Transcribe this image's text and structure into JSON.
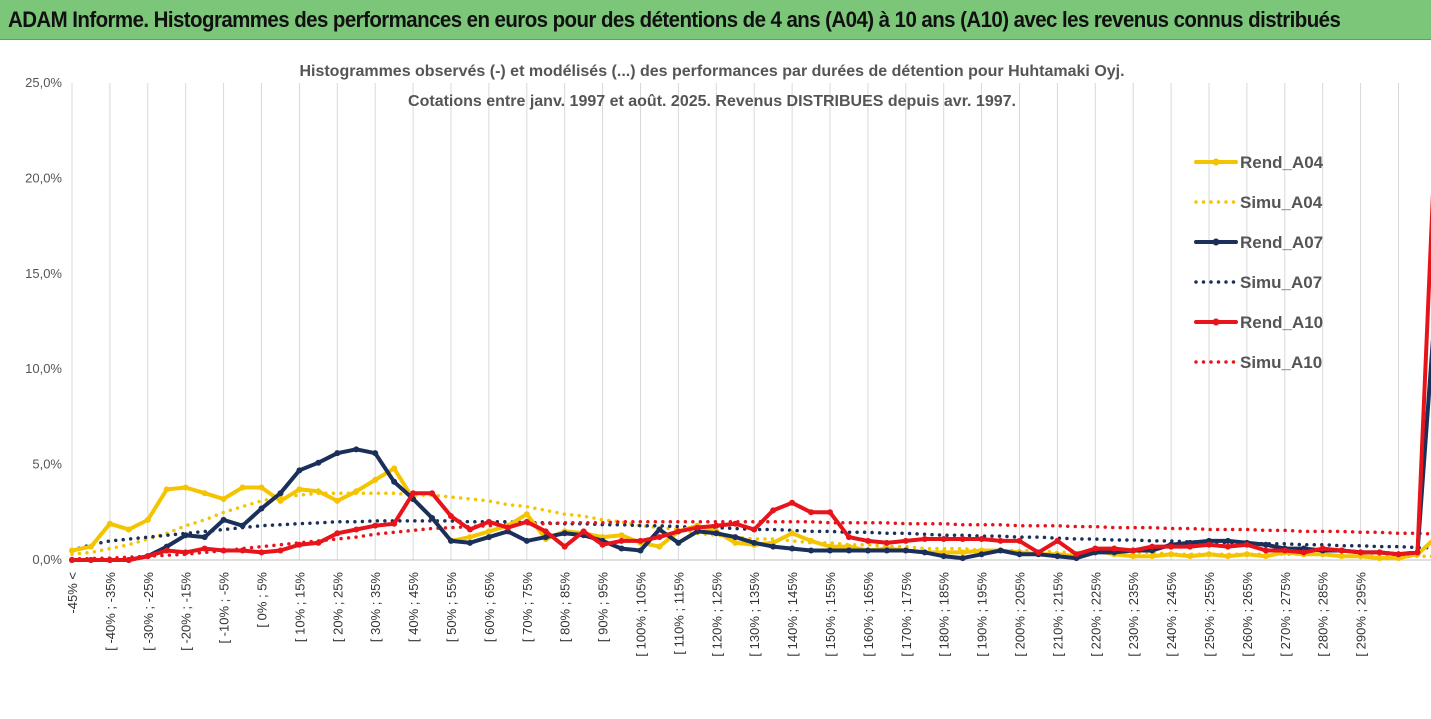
{
  "page_title": "ADAM Informe. Histogrammes des performances en euros pour des détentions de 4 ans (A04) à 10 ans (A10) avec les revenus connus distribués",
  "colors": {
    "title_bg": "#7cc67a",
    "a04": "#f5c400",
    "a07": "#1a2f5a",
    "a10": "#e8141b"
  },
  "chart_data": {
    "type": "line",
    "title_lines": [
      "Histogrammes observés (-) et modélisés (...)  des performances par durées de détention pour Huhtamaki Oyj.",
      "Cotations entre janv. 1997 et août. 2025. Revenus DISTRIBUES depuis avr.  1997."
    ],
    "xlabel": "",
    "ylabel": "",
    "y_ticks": [
      "0,0%",
      "5,0%",
      "10,0%",
      "15,0%",
      "20,0%",
      "25,0%"
    ],
    "ylim": [
      0,
      25
    ],
    "grid": "vertical",
    "legend_position": "right",
    "x_tick_labels": [
      "-45% <",
      "[ -40% ; -35%",
      "[ -30% ; -25%",
      "[ -20% ; -15%",
      "[ -10% ; -5%",
      "[ 0% ; 5%",
      "[ 10% ; 15%",
      "[ 20% ; 25%",
      "[ 30% ; 35%",
      "[ 40% ; 45%",
      "[ 50% ; 55%",
      "[ 60% ; 65%",
      "[ 70% ; 75%",
      "[ 80% ; 85%",
      "[ 90% ; 95%",
      "[ 100% ; 105%",
      "[ 110% ; 115%",
      "[ 120% ; 125%",
      "[ 130% ; 135%",
      "[ 140% ; 145%",
      "[ 150% ; 155%",
      "[ 160% ; 165%",
      "[ 170% ; 175%",
      "[ 180% ; 185%",
      "[ 190% ; 195%",
      "[ 200% ; 205%",
      "[ 210% ; 215%",
      "[ 220% ; 225%",
      "[ 230% ; 235%",
      "[ 240% ; 245%",
      "[ 250% ; 255%",
      "[ 260% ; 265%",
      "[ 270% ; 275%",
      "[ 280% ; 285%",
      "[ 290% ; 295%"
    ],
    "series": [
      {
        "name": "Rend_A04",
        "style": "solid",
        "color": "#f5c400",
        "values": [
          0.5,
          0.7,
          1.9,
          1.6,
          2.1,
          3.7,
          3.8,
          3.5,
          3.2,
          3.8,
          3.8,
          3.1,
          3.7,
          3.6,
          3.1,
          3.6,
          4.2,
          4.8,
          3.2,
          2.2,
          1.0,
          1.2,
          1.5,
          1.8,
          2.4,
          1.1,
          1.5,
          1.4,
          1.2,
          1.3,
          0.9,
          0.7,
          1.5,
          1.8,
          1.5,
          0.9,
          0.8,
          0.9,
          1.4,
          1.0,
          0.7,
          0.7,
          0.5,
          0.6,
          0.5,
          0.4,
          0.4,
          0.4,
          0.5,
          0.5,
          0.4,
          0.3,
          0.3,
          0.2,
          0.5,
          0.3,
          0.2,
          0.2,
          0.3,
          0.2,
          0.3,
          0.2,
          0.3,
          0.2,
          0.4,
          0.3,
          0.3,
          0.2,
          0.2,
          0.1,
          0.1,
          0.3,
          1.2
        ]
      },
      {
        "name": "Simu_A04",
        "style": "dotted",
        "color": "#f5c400",
        "values": [
          0.3,
          0.4,
          0.6,
          0.8,
          1.1,
          1.4,
          1.8,
          2.1,
          2.5,
          2.8,
          3.1,
          3.3,
          3.4,
          3.5,
          3.5,
          3.5,
          3.5,
          3.5,
          3.4,
          3.4,
          3.3,
          3.2,
          3.1,
          2.9,
          2.8,
          2.6,
          2.4,
          2.3,
          2.1,
          2.0,
          1.8,
          1.7,
          1.6,
          1.4,
          1.3,
          1.2,
          1.1,
          1.1,
          1.0,
          0.9,
          0.9,
          0.8,
          0.8,
          0.7,
          0.7,
          0.6,
          0.6,
          0.6,
          0.5,
          0.5,
          0.5,
          0.5,
          0.4,
          0.4,
          0.4,
          0.4,
          0.4,
          0.4,
          0.3,
          0.3,
          0.3,
          0.3,
          0.3,
          0.3,
          0.3,
          0.3,
          0.3,
          0.2,
          0.2,
          0.2,
          0.2,
          0.2,
          0.2
        ]
      },
      {
        "name": "Rend_A07",
        "style": "solid",
        "color": "#1a2f5a",
        "values": [
          0.0,
          0.0,
          0.0,
          0.0,
          0.2,
          0.7,
          1.3,
          1.2,
          2.1,
          1.8,
          2.7,
          3.5,
          4.7,
          5.1,
          5.6,
          5.8,
          5.6,
          4.1,
          3.2,
          2.2,
          1.0,
          0.9,
          1.2,
          1.5,
          1.0,
          1.2,
          1.4,
          1.3,
          1.0,
          0.6,
          0.5,
          1.6,
          0.9,
          1.5,
          1.4,
          1.2,
          0.9,
          0.7,
          0.6,
          0.5,
          0.5,
          0.5,
          0.5,
          0.5,
          0.5,
          0.4,
          0.2,
          0.1,
          0.3,
          0.5,
          0.3,
          0.3,
          0.2,
          0.1,
          0.4,
          0.4,
          0.5,
          0.5,
          0.8,
          0.9,
          1.0,
          1.0,
          0.9,
          0.8,
          0.6,
          0.6,
          0.5,
          0.5,
          0.4,
          0.4,
          0.3,
          0.4,
          14.1
        ]
      },
      {
        "name": "Simu_A07",
        "style": "dotted",
        "color": "#1a2f5a",
        "values": [
          0.5,
          0.8,
          1.0,
          1.1,
          1.2,
          1.3,
          1.4,
          1.5,
          1.6,
          1.7,
          1.8,
          1.85,
          1.9,
          1.95,
          2.0,
          2.0,
          2.05,
          2.05,
          2.05,
          2.05,
          2.05,
          2.0,
          2.0,
          2.0,
          1.95,
          1.95,
          1.9,
          1.9,
          1.85,
          1.85,
          1.8,
          1.8,
          1.75,
          1.7,
          1.7,
          1.65,
          1.6,
          1.6,
          1.55,
          1.5,
          1.5,
          1.45,
          1.45,
          1.4,
          1.4,
          1.35,
          1.3,
          1.3,
          1.25,
          1.25,
          1.2,
          1.2,
          1.15,
          1.1,
          1.1,
          1.05,
          1.05,
          1.0,
          1.0,
          0.95,
          0.95,
          0.9,
          0.9,
          0.85,
          0.85,
          0.8,
          0.8,
          0.75,
          0.75,
          0.7,
          0.7,
          0.65,
          0.65
        ]
      },
      {
        "name": "Rend_A10",
        "style": "solid",
        "color": "#e8141b",
        "values": [
          0.0,
          0.0,
          0.0,
          0.0,
          0.2,
          0.5,
          0.4,
          0.6,
          0.5,
          0.5,
          0.4,
          0.5,
          0.8,
          0.9,
          1.4,
          1.6,
          1.8,
          1.9,
          3.5,
          3.5,
          2.3,
          1.6,
          2.0,
          1.7,
          2.0,
          1.5,
          0.7,
          1.5,
          0.8,
          1.0,
          1.0,
          1.2,
          1.5,
          1.7,
          1.8,
          1.9,
          1.6,
          2.6,
          3.0,
          2.5,
          2.5,
          1.2,
          1.0,
          0.9,
          1.0,
          1.1,
          1.1,
          1.1,
          1.1,
          1.0,
          1.0,
          0.4,
          1.0,
          0.3,
          0.6,
          0.6,
          0.5,
          0.7,
          0.7,
          0.7,
          0.8,
          0.7,
          0.8,
          0.5,
          0.5,
          0.4,
          0.6,
          0.5,
          0.4,
          0.4,
          0.3,
          0.4,
          23.4
        ]
      },
      {
        "name": "Simu_A10",
        "style": "dotted",
        "color": "#e8141b",
        "values": [
          0.05,
          0.08,
          0.1,
          0.15,
          0.2,
          0.25,
          0.3,
          0.4,
          0.5,
          0.6,
          0.7,
          0.8,
          0.9,
          1.0,
          1.1,
          1.2,
          1.35,
          1.45,
          1.55,
          1.65,
          1.7,
          1.75,
          1.8,
          1.85,
          1.9,
          1.9,
          1.95,
          1.95,
          1.95,
          2.0,
          2.0,
          2.0,
          2.0,
          2.0,
          2.0,
          2.0,
          2.0,
          2.0,
          2.0,
          2.0,
          1.95,
          1.95,
          1.95,
          1.95,
          1.9,
          1.9,
          1.9,
          1.85,
          1.85,
          1.85,
          1.8,
          1.8,
          1.8,
          1.75,
          1.75,
          1.7,
          1.7,
          1.7,
          1.65,
          1.65,
          1.6,
          1.6,
          1.6,
          1.55,
          1.55,
          1.5,
          1.5,
          1.5,
          1.45,
          1.45,
          1.4,
          1.4,
          1.35
        ]
      }
    ]
  }
}
